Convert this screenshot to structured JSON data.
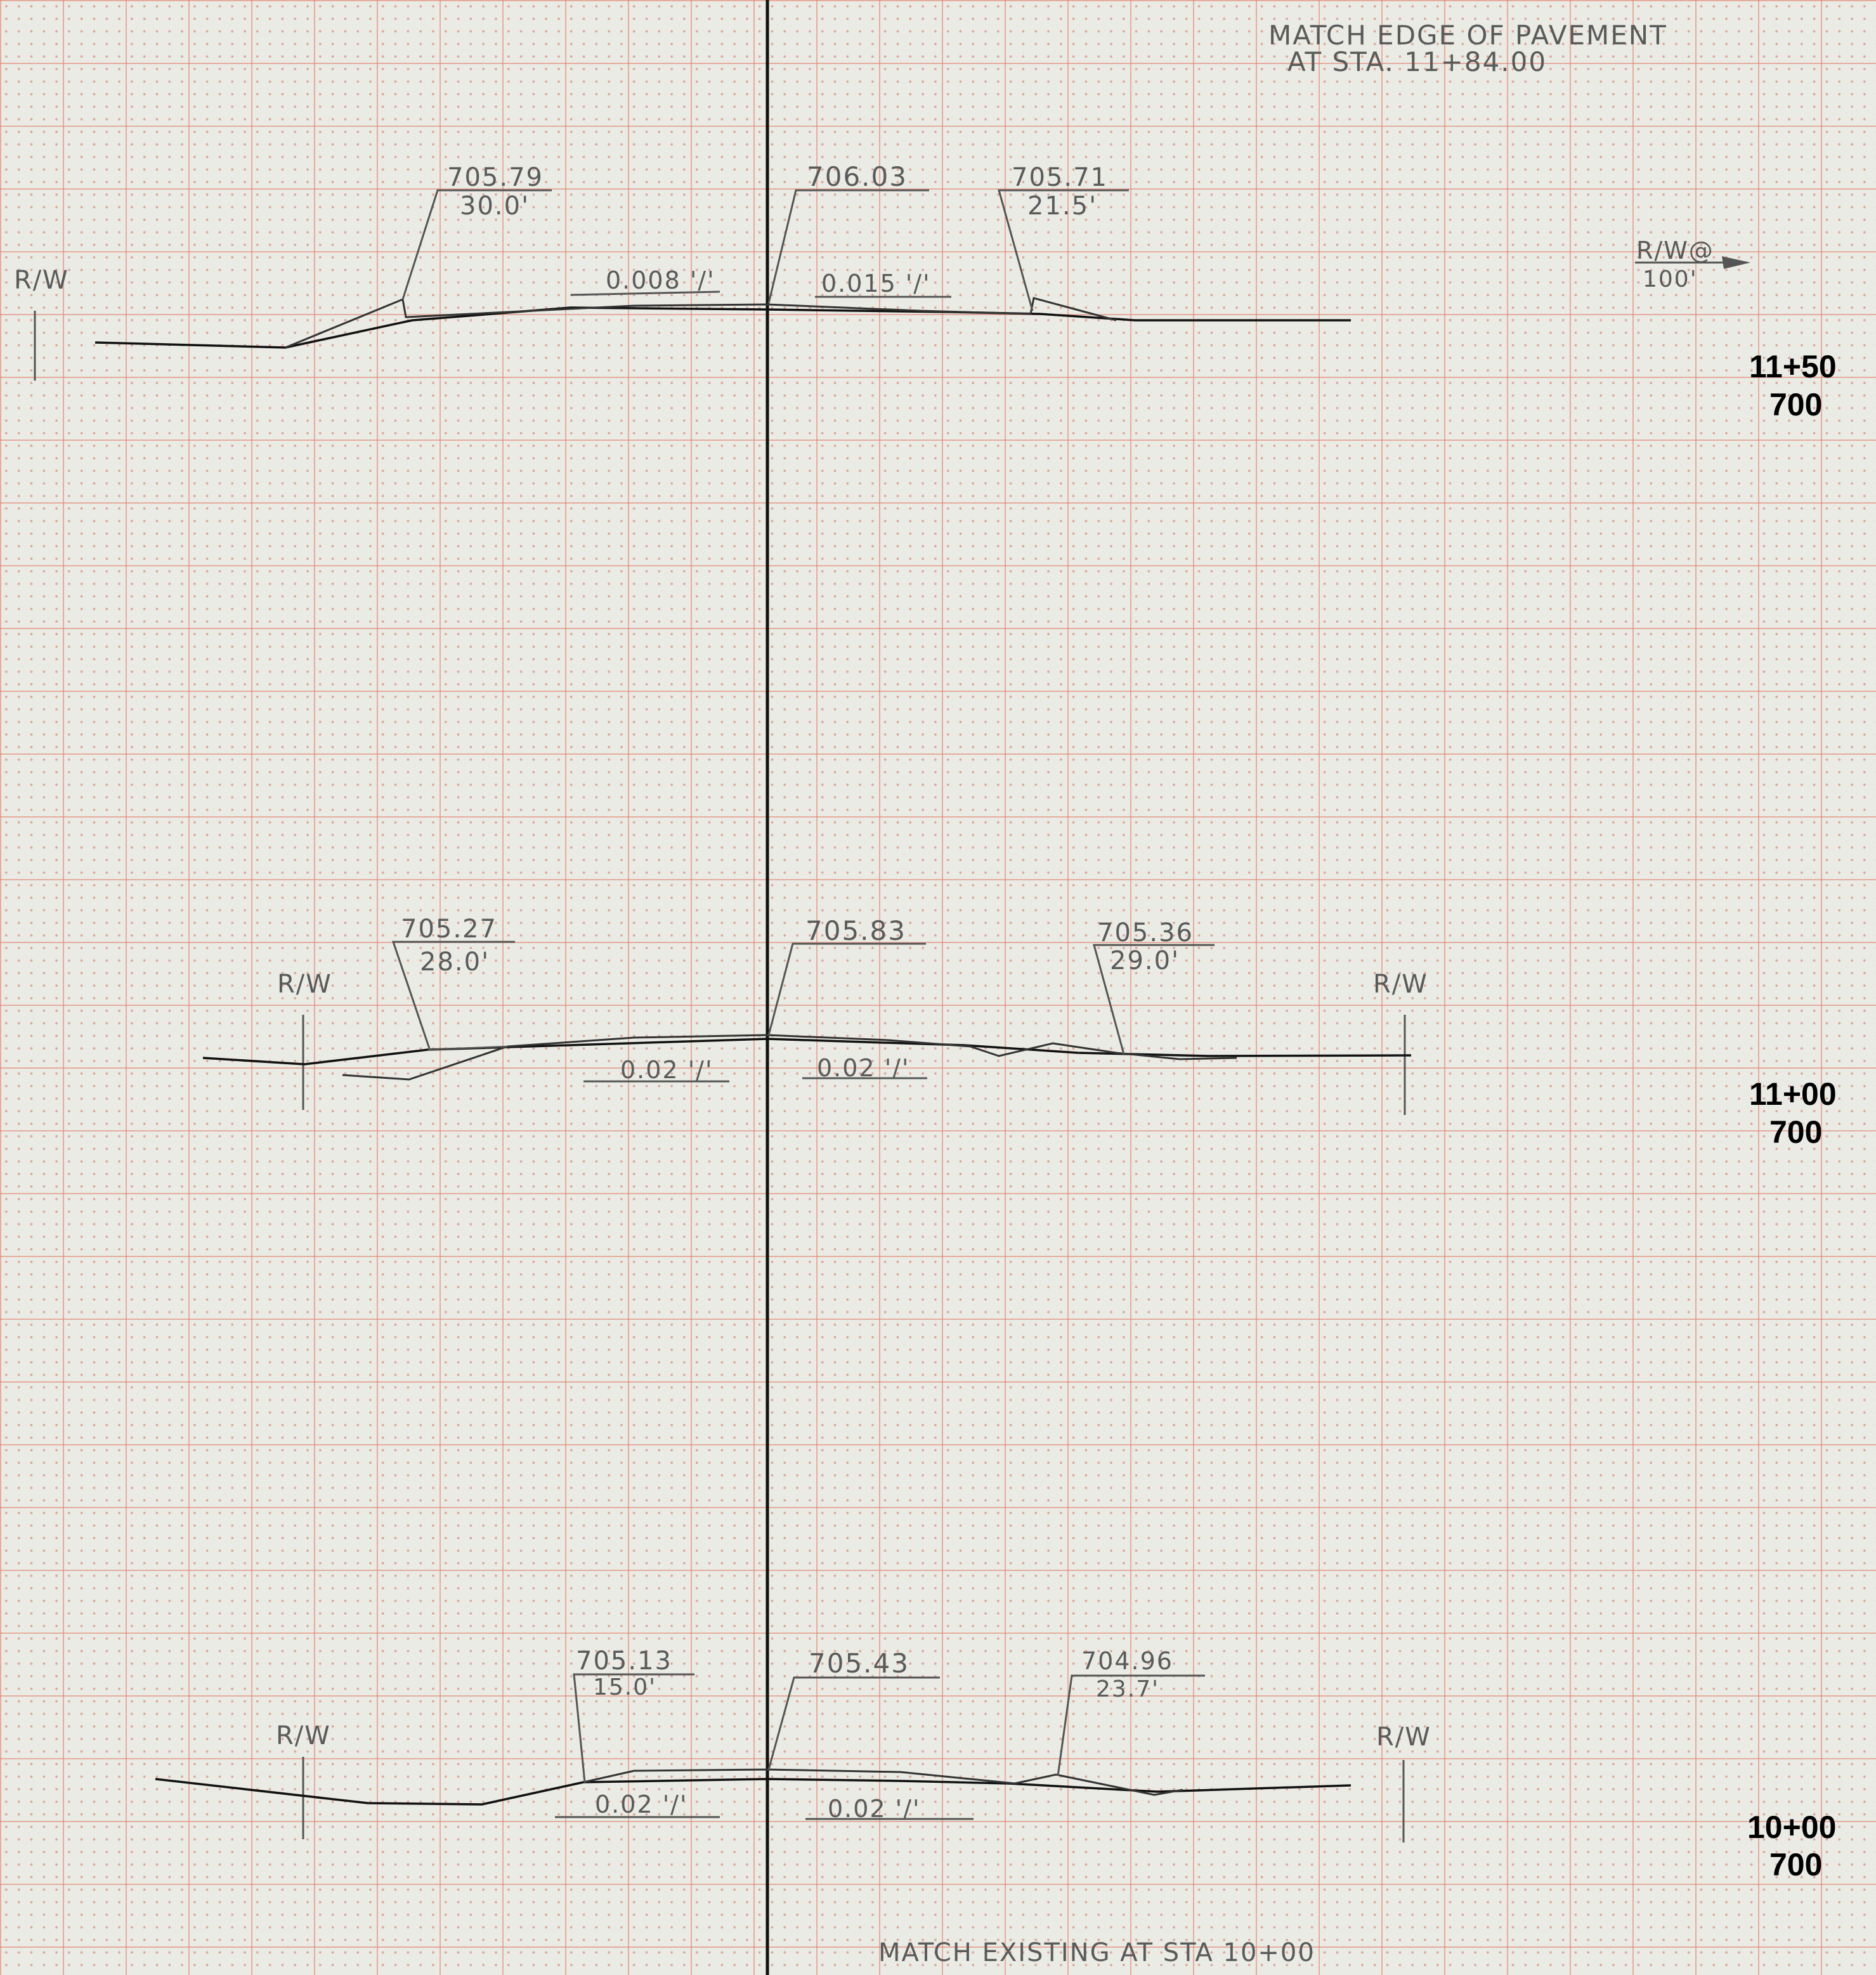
{
  "notes": {
    "top_match": [
      "MATCH EDGE OF PAVEMENT",
      "AT STA. 11+84.00"
    ],
    "bottom_match": "MATCH EXISTING AT STA 10+00"
  },
  "sections": [
    {
      "station": "11+50",
      "datum": "700",
      "left_rw": "R/W",
      "right_rw_note": [
        "R/W@",
        "100'"
      ],
      "left_shoulder": {
        "elevation": "705.79",
        "offset": "30.0'"
      },
      "centerline": {
        "elevation": "706.03"
      },
      "right_shoulder": {
        "elevation": "705.71",
        "offset": "21.5'"
      },
      "left_slope": "0.008 '/'",
      "right_slope": "0.015 '/'"
    },
    {
      "station": "11+00",
      "datum": "700",
      "left_rw": "R/W",
      "right_rw": "R/W",
      "left_shoulder": {
        "elevation": "705.27",
        "offset": "28.0'"
      },
      "centerline": {
        "elevation": "705.83"
      },
      "right_shoulder": {
        "elevation": "705.36",
        "offset": "29.0'"
      },
      "left_slope": "0.02 '/'",
      "right_slope": "0.02 '/'"
    },
    {
      "station": "10+00",
      "datum": "700",
      "left_rw": "R/W",
      "right_rw": "R/W",
      "left_shoulder": {
        "elevation": "705.13",
        "offset": "15.0'"
      },
      "centerline": {
        "elevation": "705.43"
      },
      "right_shoulder": {
        "elevation": "704.96",
        "offset": "23.7'"
      },
      "left_slope": "0.02 '/'",
      "right_slope": "0.02 '/'"
    }
  ]
}
